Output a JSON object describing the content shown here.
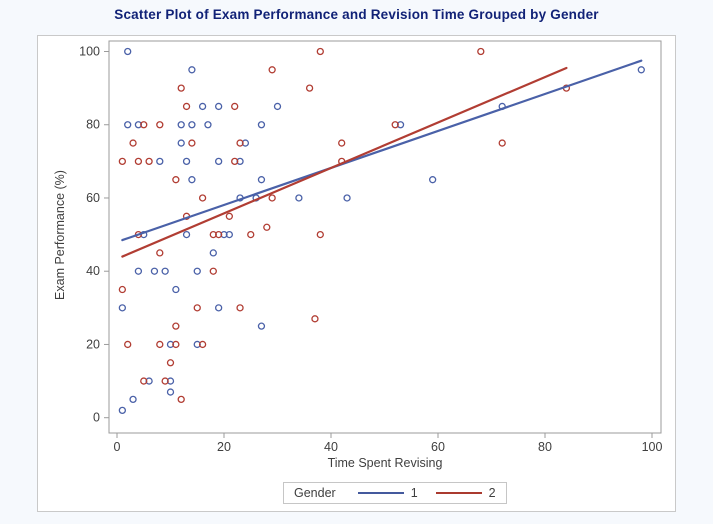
{
  "title": "Scatter Plot of Exam Performance and Revision Time Grouped by Gender",
  "chart_data": {
    "type": "scatter",
    "xlabel": "Time Spent Revising",
    "ylabel": "Exam Performance (%)",
    "xlim": [
      0,
      100
    ],
    "ylim": [
      0,
      100
    ],
    "xticks": [
      0,
      20,
      40,
      60,
      80,
      100
    ],
    "yticks": [
      0,
      20,
      40,
      60,
      80,
      100
    ],
    "grid": false,
    "legend": {
      "title": "Gender",
      "position": "bottom",
      "entries": [
        {
          "label": "1",
          "color": "#44599d"
        },
        {
          "label": "2",
          "color": "#aa3a2f"
        }
      ]
    },
    "series": [
      {
        "name": "1",
        "marker": "open-circle",
        "color": "#4a61a8",
        "points": [
          [
            2,
            100
          ],
          [
            14,
            95
          ],
          [
            98,
            95
          ],
          [
            16,
            85
          ],
          [
            19,
            85
          ],
          [
            30,
            85
          ],
          [
            72,
            85
          ],
          [
            2,
            80
          ],
          [
            4,
            80
          ],
          [
            12,
            80
          ],
          [
            14,
            80
          ],
          [
            17,
            80
          ],
          [
            27,
            80
          ],
          [
            53,
            80
          ],
          [
            12,
            75
          ],
          [
            24,
            75
          ],
          [
            8,
            70
          ],
          [
            13,
            70
          ],
          [
            19,
            70
          ],
          [
            23,
            70
          ],
          [
            14,
            65
          ],
          [
            27,
            65
          ],
          [
            59,
            65
          ],
          [
            23,
            60
          ],
          [
            26,
            60
          ],
          [
            34,
            60
          ],
          [
            43,
            60
          ],
          [
            5,
            50
          ],
          [
            13,
            50
          ],
          [
            20,
            50
          ],
          [
            21,
            50
          ],
          [
            18,
            45
          ],
          [
            4,
            40
          ],
          [
            7,
            40
          ],
          [
            9,
            40
          ],
          [
            15,
            40
          ],
          [
            11,
            35
          ],
          [
            1,
            30
          ],
          [
            19,
            30
          ],
          [
            27,
            25
          ],
          [
            10,
            20
          ],
          [
            15,
            20
          ],
          [
            6,
            10
          ],
          [
            10,
            10
          ],
          [
            10,
            7
          ],
          [
            3,
            5
          ],
          [
            1,
            2
          ]
        ],
        "regression_line": {
          "x1": 1,
          "y1": 48.5,
          "x2": 98,
          "y2": 97.5
        }
      },
      {
        "name": "2",
        "marker": "open-circle",
        "color": "#b13d33",
        "points": [
          [
            38,
            100
          ],
          [
            68,
            100
          ],
          [
            29,
            95
          ],
          [
            12,
            90
          ],
          [
            36,
            90
          ],
          [
            84,
            90
          ],
          [
            13,
            85
          ],
          [
            22,
            85
          ],
          [
            5,
            80
          ],
          [
            8,
            80
          ],
          [
            52,
            80
          ],
          [
            3,
            75
          ],
          [
            14,
            75
          ],
          [
            23,
            75
          ],
          [
            42,
            75
          ],
          [
            72,
            75
          ],
          [
            1,
            70
          ],
          [
            4,
            70
          ],
          [
            6,
            70
          ],
          [
            22,
            70
          ],
          [
            42,
            70
          ],
          [
            11,
            65
          ],
          [
            16,
            60
          ],
          [
            29,
            60
          ],
          [
            13,
            55
          ],
          [
            21,
            55
          ],
          [
            28,
            52
          ],
          [
            4,
            50
          ],
          [
            18,
            50
          ],
          [
            19,
            50
          ],
          [
            25,
            50
          ],
          [
            38,
            50
          ],
          [
            8,
            45
          ],
          [
            18,
            40
          ],
          [
            1,
            35
          ],
          [
            15,
            30
          ],
          [
            23,
            30
          ],
          [
            37,
            27
          ],
          [
            11,
            25
          ],
          [
            2,
            20
          ],
          [
            8,
            20
          ],
          [
            11,
            20
          ],
          [
            16,
            20
          ],
          [
            10,
            15
          ],
          [
            5,
            10
          ],
          [
            9,
            10
          ],
          [
            12,
            5
          ]
        ],
        "regression_line": {
          "x1": 1,
          "y1": 44,
          "x2": 84,
          "y2": 95.5
        }
      }
    ]
  }
}
